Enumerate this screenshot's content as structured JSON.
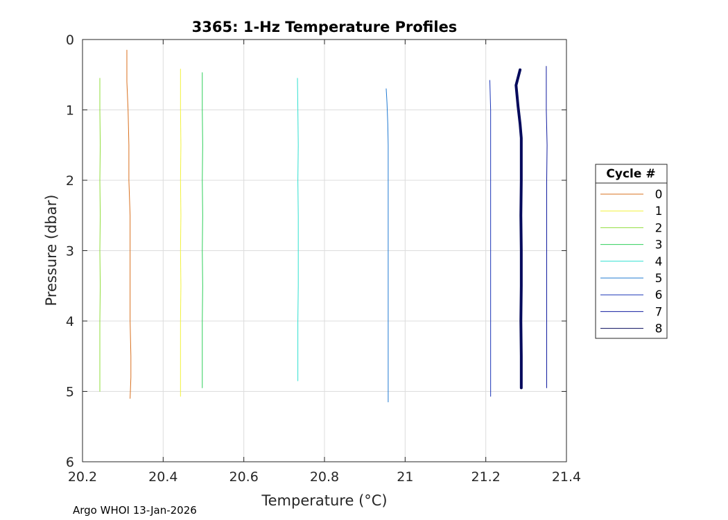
{
  "chart_data": {
    "type": "line",
    "title": "3365: 1-Hz Temperature Profiles",
    "xlabel": "Temperature (°C)",
    "ylabel": "Pressure (dbar)",
    "xlim": [
      20.2,
      21.4
    ],
    "ylim": [
      0,
      6
    ],
    "y_reversed": true,
    "grid": true,
    "xticks": [
      20.2,
      20.4,
      20.6,
      20.8,
      21,
      21.2,
      21.4
    ],
    "xtick_labels": [
      "20.2",
      "20.4",
      "20.6",
      "20.8",
      "21",
      "21.2",
      "21.4"
    ],
    "yticks": [
      0,
      1,
      2,
      3,
      4,
      5,
      6
    ],
    "ytick_labels": [
      "0",
      "1",
      "2",
      "3",
      "4",
      "5",
      "6"
    ],
    "legend_title": "Cycle #",
    "legend_position": "outside-right",
    "series": [
      {
        "name": "0",
        "color": "#d9701e",
        "width": 1,
        "points": [
          [
            20.31,
            0.15
          ],
          [
            20.31,
            0.6
          ],
          [
            20.313,
            1.0
          ],
          [
            20.315,
            1.5
          ],
          [
            20.315,
            2.0
          ],
          [
            20.318,
            2.5
          ],
          [
            20.318,
            3.0
          ],
          [
            20.318,
            3.5
          ],
          [
            20.318,
            4.0
          ],
          [
            20.32,
            4.5
          ],
          [
            20.32,
            4.8
          ],
          [
            20.318,
            5.1
          ]
        ]
      },
      {
        "name": "1",
        "color": "#f2f23c",
        "width": 1,
        "points": [
          [
            20.443,
            0.42
          ],
          [
            20.443,
            1.0
          ],
          [
            20.444,
            1.5
          ],
          [
            20.443,
            2.0
          ],
          [
            20.444,
            2.5
          ],
          [
            20.443,
            3.0
          ],
          [
            20.444,
            3.5
          ],
          [
            20.443,
            4.0
          ],
          [
            20.443,
            4.5
          ],
          [
            20.443,
            5.07
          ]
        ]
      },
      {
        "name": "2",
        "color": "#8fdd3a",
        "width": 1,
        "points": [
          [
            20.243,
            0.55
          ],
          [
            20.243,
            1.0
          ],
          [
            20.244,
            1.5
          ],
          [
            20.243,
            2.0
          ],
          [
            20.244,
            2.5
          ],
          [
            20.243,
            3.0
          ],
          [
            20.244,
            3.5
          ],
          [
            20.243,
            4.0
          ],
          [
            20.243,
            4.5
          ],
          [
            20.243,
            5.0
          ]
        ]
      },
      {
        "name": "3",
        "color": "#2fcf5a",
        "width": 1,
        "points": [
          [
            20.497,
            0.47
          ],
          [
            20.497,
            1.0
          ],
          [
            20.498,
            1.5
          ],
          [
            20.497,
            2.0
          ],
          [
            20.498,
            2.5
          ],
          [
            20.497,
            3.0
          ],
          [
            20.498,
            3.5
          ],
          [
            20.497,
            4.0
          ],
          [
            20.497,
            4.5
          ],
          [
            20.497,
            4.95
          ]
        ]
      },
      {
        "name": "4",
        "color": "#2ee0d0",
        "width": 1,
        "points": [
          [
            20.733,
            0.55
          ],
          [
            20.734,
            1.0
          ],
          [
            20.735,
            1.5
          ],
          [
            20.734,
            2.0
          ],
          [
            20.735,
            2.5
          ],
          [
            20.735,
            3.0
          ],
          [
            20.735,
            3.5
          ],
          [
            20.734,
            4.0
          ],
          [
            20.734,
            4.5
          ],
          [
            20.734,
            4.85
          ]
        ]
      },
      {
        "name": "5",
        "color": "#1f79d2",
        "width": 1,
        "points": [
          [
            20.953,
            0.7
          ],
          [
            20.955,
            0.9
          ],
          [
            20.957,
            1.2
          ],
          [
            20.958,
            1.5
          ],
          [
            20.958,
            2.0
          ],
          [
            20.958,
            2.5
          ],
          [
            20.958,
            3.0
          ],
          [
            20.958,
            3.5
          ],
          [
            20.958,
            4.0
          ],
          [
            20.958,
            4.5
          ],
          [
            20.958,
            5.15
          ]
        ]
      },
      {
        "name": "6",
        "color": "#1a35b8",
        "width": 1,
        "points": [
          [
            21.21,
            0.58
          ],
          [
            21.212,
            1.0
          ],
          [
            21.212,
            1.5
          ],
          [
            21.212,
            2.0
          ],
          [
            21.212,
            2.5
          ],
          [
            21.212,
            3.0
          ],
          [
            21.212,
            3.5
          ],
          [
            21.212,
            4.0
          ],
          [
            21.212,
            4.5
          ],
          [
            21.212,
            5.07
          ]
        ]
      },
      {
        "name": "7",
        "color": "#0f1a9e",
        "width": 1,
        "points": [
          [
            21.35,
            0.38
          ],
          [
            21.35,
            1.0
          ],
          [
            21.352,
            1.5
          ],
          [
            21.351,
            2.0
          ],
          [
            21.351,
            2.5
          ],
          [
            21.351,
            3.0
          ],
          [
            21.351,
            3.5
          ],
          [
            21.351,
            4.0
          ],
          [
            21.351,
            4.5
          ],
          [
            21.351,
            4.95
          ]
        ]
      },
      {
        "name": "8",
        "color": "#050a5c",
        "width": 4,
        "points": [
          [
            21.285,
            0.43
          ],
          [
            21.275,
            0.65
          ],
          [
            21.28,
            0.95
          ],
          [
            21.285,
            1.2
          ],
          [
            21.288,
            1.4
          ],
          [
            21.288,
            2.0
          ],
          [
            21.287,
            2.5
          ],
          [
            21.288,
            3.0
          ],
          [
            21.288,
            3.5
          ],
          [
            21.287,
            4.0
          ],
          [
            21.288,
            4.5
          ],
          [
            21.288,
            4.95
          ]
        ]
      }
    ]
  },
  "footer": "Argo WHOI 13-Jan-2026"
}
